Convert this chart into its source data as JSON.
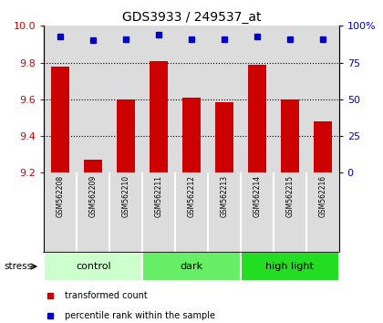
{
  "title": "GDS3933 / 249537_at",
  "samples": [
    "GSM562208",
    "GSM562209",
    "GSM562210",
    "GSM562211",
    "GSM562212",
    "GSM562213",
    "GSM562214",
    "GSM562215",
    "GSM562216"
  ],
  "bar_values": [
    9.78,
    9.27,
    9.6,
    9.81,
    9.61,
    9.585,
    9.79,
    9.6,
    9.48
  ],
  "dot_values": [
    93,
    90,
    91,
    94,
    91,
    91,
    93,
    91,
    91
  ],
  "ylim_left": [
    9.2,
    10.0
  ],
  "ylim_right": [
    0,
    100
  ],
  "yticks_left": [
    9.2,
    9.4,
    9.6,
    9.8,
    10.0
  ],
  "yticks_right": [
    0,
    25,
    50,
    75,
    100
  ],
  "grid_yticks": [
    9.4,
    9.6,
    9.8
  ],
  "bar_color": "#CC0000",
  "dot_color": "#0000CC",
  "group_data": [
    {
      "label": "control",
      "start": 0,
      "end": 2,
      "color": "#CCFFCC"
    },
    {
      "label": "dark",
      "start": 3,
      "end": 5,
      "color": "#66EE66"
    },
    {
      "label": "high light",
      "start": 6,
      "end": 8,
      "color": "#22DD22"
    }
  ],
  "stress_label": "stress",
  "legend_items": [
    {
      "color": "#CC0000",
      "label": "transformed count"
    },
    {
      "color": "#0000CC",
      "label": "percentile rank within the sample"
    }
  ],
  "bg_color": "#DCDCDC",
  "tick_color_left": "#CC0000",
  "tick_color_right": "#0000CC",
  "bar_width": 0.55
}
